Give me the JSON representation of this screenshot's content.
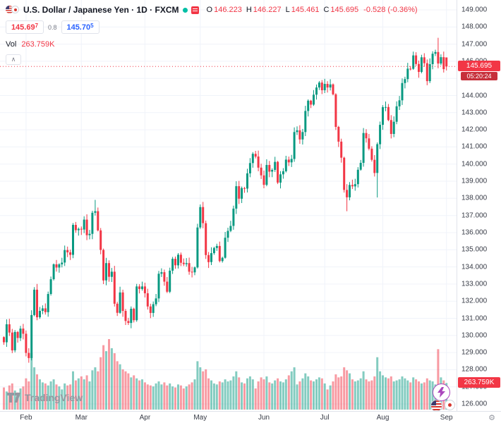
{
  "header": {
    "symbol_title": "U.S. Dollar / Japanese Yen · 1D · FXCM",
    "ohlc": {
      "o_label": "O",
      "o": "146.223",
      "h_label": "H",
      "h": "146.227",
      "l_label": "L",
      "l": "145.461",
      "c_label": "C",
      "c": "145.695",
      "change": "-0.528 (-0.36%)"
    },
    "bid": {
      "main": "145.69",
      "sup": "7"
    },
    "spread": "0.8",
    "ask": {
      "main": "145.70",
      "sup": "5"
    },
    "vol_label": "Vol",
    "vol_value": "263.759K"
  },
  "axis_labels": {
    "price_label": "145.695",
    "countdown": "05:20:24",
    "volume_label": "263.759K"
  },
  "footer": {
    "logo_text": "TradingView"
  },
  "icons": {
    "collapse": "∧",
    "gear": "⚙",
    "lightning": "lightning-bolt",
    "flags": [
      "us-flag",
      "japan-flag"
    ]
  },
  "colors": {
    "up": "#089981",
    "down": "#F23645",
    "vol_up": "rgba(8,153,129,0.5)",
    "vol_down": "rgba(242,54,69,0.5)",
    "blue": "#2962FF",
    "grid": "#f0f3fa",
    "countdown_bg": "#c62f3a"
  },
  "chart_data": {
    "type": "candlestick+volume",
    "symbol": "USD/JPY",
    "timeframe": "1D",
    "source": "FXCM",
    "legend_position": "top-left",
    "grid": true,
    "y_axis": {
      "min": 126,
      "max": 149,
      "step": 1,
      "decimals": 3
    },
    "x_axis_months": [
      {
        "label": "Feb",
        "index": 8
      },
      {
        "label": "Mar",
        "index": 28
      },
      {
        "label": "Apr",
        "index": 51
      },
      {
        "label": "May",
        "index": 71
      },
      {
        "label": "Jun",
        "index": 94
      },
      {
        "label": "Jul",
        "index": 116
      },
      {
        "label": "Aug",
        "index": 137
      },
      {
        "label": "Sep",
        "index": 160
      }
    ],
    "opens_rule": "each candle opens at the previous close",
    "first_open": 129.9,
    "closes": [
      129.6,
      130.65,
      130.17,
      129.13,
      130.2,
      129.85,
      130.4,
      130.1,
      128.98,
      128.68,
      131.19,
      132.67,
      131.06,
      131.43,
      131.58,
      131.36,
      132.42,
      133.28,
      134.15,
      133.96,
      134.15,
      134.25,
      134.98,
      134.85,
      134.7,
      136.45,
      136.14,
      136.22,
      136.18,
      136.76,
      135.85,
      135.93,
      137.16,
      137.25,
      136.13,
      134.99,
      133.21,
      134.22,
      133.42,
      133.72,
      131.85,
      131.32,
      132.51,
      131.43,
      130.84,
      130.73,
      131.56,
      130.89,
      132.86,
      132.71,
      132.86,
      132.46,
      131.69,
      131.31,
      131.82,
      132.16,
      133.6,
      133.69,
      133.14,
      132.55,
      133.78,
      134.47,
      134.09,
      134.71,
      134.24,
      134.16,
      134.22,
      133.72,
      133.68,
      133.97,
      136.3,
      137.49,
      136.55,
      134.69,
      134.28,
      134.8,
      135.1,
      135.22,
      134.34,
      134.53,
      135.7,
      136.1,
      136.39,
      137.4,
      138.71,
      137.98,
      138.6,
      138.57,
      139.46,
      140.06,
      140.6,
      140.44,
      139.79,
      139.34,
      138.79,
      139.95,
      139.56,
      139.66,
      140.13,
      138.92,
      139.4,
      139.58,
      140.26,
      140.1,
      140.3,
      141.87,
      141.97,
      141.44,
      141.87,
      143.1,
      143.7,
      143.47,
      144.05,
      144.47,
      144.76,
      144.31,
      144.68,
      144.47,
      144.65,
      144.07,
      142.17,
      141.31,
      140.37,
      138.49,
      138.06,
      138.78,
      138.7,
      138.83,
      139.67,
      140.07,
      141.81,
      141.5,
      140.9,
      140.25,
      139.48,
      141.16,
      142.29,
      143.32,
      143.33,
      142.57,
      141.76,
      142.47,
      143.37,
      143.72,
      144.73,
      144.96,
      145.57,
      145.56,
      146.34,
      145.84,
      145.38,
      146.23,
      145.89,
      144.84,
      145.83,
      146.44,
      146.54,
      145.87,
      146.24,
      145.54,
      145.695
    ],
    "volumes_k": [
      220,
      180,
      240,
      260,
      190,
      170,
      210,
      230,
      310,
      280,
      560,
      420,
      350,
      300,
      270,
      260,
      240,
      280,
      300,
      250,
      230,
      200,
      260,
      240,
      250,
      380,
      290,
      310,
      330,
      300,
      340,
      280,
      390,
      420,
      380,
      520,
      640,
      580,
      700,
      610,
      560,
      480,
      450,
      400,
      380,
      360,
      320,
      340,
      310,
      290,
      300,
      270,
      250,
      240,
      230,
      260,
      280,
      250,
      270,
      240,
      260,
      230,
      220,
      250,
      240,
      210,
      230,
      250,
      270,
      300,
      480,
      420,
      380,
      400,
      310,
      290,
      260,
      250,
      280,
      270,
      300,
      280,
      290,
      330,
      380,
      320,
      270,
      260,
      310,
      330,
      300,
      210,
      280,
      320,
      300,
      330,
      270,
      260,
      290,
      310,
      280,
      270,
      300,
      340,
      380,
      420,
      250,
      280,
      310,
      360,
      330,
      290,
      280,
      300,
      320,
      310,
      260,
      200,
      240,
      280,
      350,
      320,
      330,
      420,
      390,
      360,
      300,
      280,
      290,
      310,
      380,
      300,
      280,
      290,
      330,
      520,
      380,
      340,
      320,
      310,
      330,
      280,
      290,
      300,
      330,
      310,
      290,
      270,
      320,
      300,
      280,
      260,
      270,
      310,
      290,
      280,
      250,
      600,
      320,
      290,
      263.759
    ],
    "overrides": {
      "33": {
        "high": 137.91
      },
      "124": {
        "low": 137.25
      },
      "135": {
        "low": 138.05
      },
      "157": {
        "high": 147.37
      },
      "160": {
        "open": 146.223,
        "high": 146.227,
        "low": 145.461,
        "close": 145.695
      }
    },
    "last_price": 145.695,
    "last_volume_k": 263.759,
    "volume_scale_max_k": 700
  }
}
